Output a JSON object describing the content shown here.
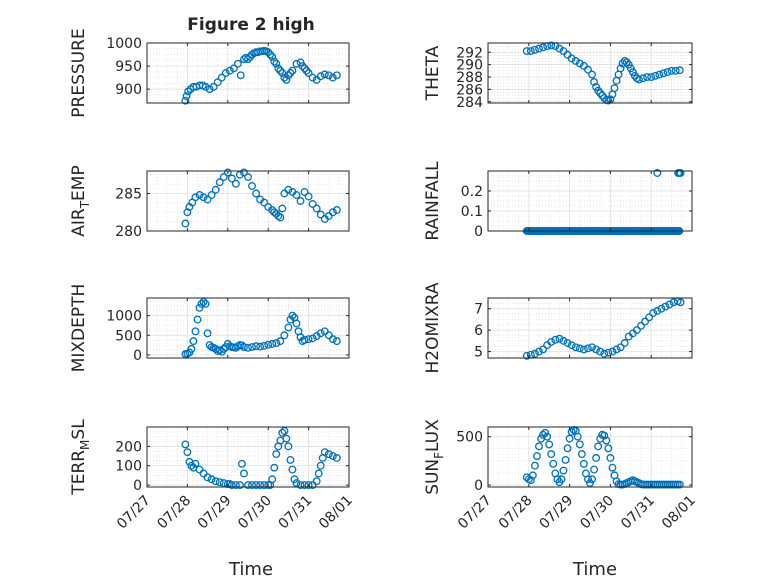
{
  "figure": {
    "title": "Figure 2 high",
    "marker_color": "#0072BD",
    "axis_color": "#262626",
    "grid_color": "#dcdcdc"
  },
  "x_axis": {
    "label": "Time",
    "tick_labels": [
      "07/27",
      "07/28",
      "07/29",
      "07/30",
      "07/31",
      "08/01"
    ],
    "tick_values": [
      0,
      1,
      2,
      3,
      4,
      5
    ],
    "range_days": [
      0,
      5
    ],
    "rotated_labels": true,
    "note_origin": "07/27"
  },
  "chart_data": [
    {
      "type": "scatter",
      "ylabel": "PRESSURE",
      "ylabel_sub": "",
      "ylabel_after": "",
      "ylim": [
        870,
        1000
      ],
      "yticks": [
        900,
        950,
        1000
      ],
      "grid": true,
      "show_xticks": false,
      "x": [
        0.95,
        0.98,
        1.02,
        1.08,
        1.15,
        1.22,
        1.3,
        1.38,
        1.45,
        1.55,
        1.65,
        1.75,
        1.85,
        1.95,
        2.05,
        2.15,
        2.25,
        2.32,
        2.4,
        2.45,
        2.5,
        2.55,
        2.6,
        2.65,
        2.7,
        2.75,
        2.8,
        2.85,
        2.9,
        2.95,
        3.0,
        3.05,
        3.1,
        3.15,
        3.2,
        3.25,
        3.3,
        3.35,
        3.4,
        3.45,
        3.5,
        3.55,
        3.6,
        3.7,
        3.8,
        3.85,
        3.9,
        3.95,
        4.0,
        4.1,
        4.2,
        4.3,
        4.4,
        4.5,
        4.6,
        4.7
      ],
      "y": [
        875,
        885,
        895,
        900,
        905,
        905,
        908,
        908,
        905,
        900,
        905,
        915,
        925,
        935,
        940,
        945,
        955,
        930,
        965,
        968,
        965,
        970,
        975,
        978,
        980,
        980,
        982,
        982,
        983,
        982,
        980,
        975,
        970,
        960,
        955,
        945,
        940,
        935,
        925,
        920,
        930,
        935,
        940,
        955,
        958,
        950,
        945,
        940,
        935,
        925,
        920,
        928,
        932,
        930,
        925,
        930
      ]
    },
    {
      "type": "scatter",
      "ylabel": "THETA",
      "ylabel_sub": "",
      "ylabel_after": "",
      "ylim": [
        283.8,
        293.5
      ],
      "yticks": [
        284,
        286,
        288,
        290,
        292
      ],
      "grid": true,
      "show_xticks": false,
      "x": [
        0.95,
        1.05,
        1.15,
        1.25,
        1.35,
        1.45,
        1.55,
        1.65,
        1.75,
        1.85,
        1.95,
        2.05,
        2.15,
        2.25,
        2.35,
        2.45,
        2.55,
        2.6,
        2.65,
        2.7,
        2.75,
        2.8,
        2.85,
        2.9,
        2.95,
        3.0,
        3.05,
        3.1,
        3.15,
        3.2,
        3.25,
        3.3,
        3.35,
        3.4,
        3.45,
        3.5,
        3.55,
        3.6,
        3.65,
        3.7,
        3.8,
        3.9,
        4.0,
        4.1,
        4.2,
        4.3,
        4.4,
        4.5,
        4.6,
        4.7
      ],
      "y": [
        292.2,
        292.2,
        292.4,
        292.6,
        292.8,
        293.0,
        293.1,
        293.0,
        292.6,
        292.2,
        291.6,
        291.0,
        290.6,
        290.2,
        289.8,
        289.2,
        288.4,
        287.2,
        286.4,
        285.8,
        285.4,
        285.0,
        284.6,
        284.3,
        284.2,
        284.4,
        285.2,
        286.2,
        287.4,
        288.4,
        289.4,
        290.2,
        290.6,
        290.4,
        290.0,
        289.4,
        288.8,
        288.2,
        287.8,
        287.6,
        287.8,
        288.0,
        288.0,
        288.2,
        288.4,
        288.6,
        288.8,
        289.0,
        289.0,
        289.1
      ]
    },
    {
      "type": "scatter",
      "ylabel": "AIR",
      "ylabel_sub": "T",
      "ylabel_after": "EMP",
      "ylim": [
        280,
        288
      ],
      "yticks": [
        280,
        285
      ],
      "grid": true,
      "show_xticks": false,
      "x": [
        0.95,
        1.0,
        1.05,
        1.12,
        1.2,
        1.3,
        1.4,
        1.5,
        1.6,
        1.7,
        1.8,
        1.9,
        2.0,
        2.1,
        2.2,
        2.3,
        2.4,
        2.5,
        2.6,
        2.7,
        2.8,
        2.9,
        3.0,
        3.1,
        3.15,
        3.2,
        3.25,
        3.3,
        3.35,
        3.4,
        3.5,
        3.6,
        3.7,
        3.8,
        3.9,
        4.0,
        4.1,
        4.2,
        4.3,
        4.4,
        4.5,
        4.6,
        4.7
      ],
      "y": [
        281.0,
        282.5,
        283.2,
        283.8,
        284.5,
        284.8,
        284.5,
        284.2,
        284.8,
        285.5,
        286.5,
        287.2,
        287.8,
        287.0,
        286.3,
        287.5,
        287.8,
        287.2,
        286.0,
        285.0,
        284.2,
        283.8,
        283.2,
        282.8,
        282.5,
        282.3,
        282.0,
        281.8,
        283.0,
        285.0,
        285.5,
        285.2,
        284.8,
        284.0,
        285.2,
        284.6,
        283.6,
        283.0,
        282.2,
        281.6,
        282.0,
        282.5,
        282.8
      ]
    },
    {
      "type": "scatter",
      "ylabel": "RAINFALL",
      "ylabel_sub": "",
      "ylabel_after": "",
      "ylim": [
        0,
        0.3
      ],
      "yticks": [
        0,
        0.1,
        0.2
      ],
      "grid": true,
      "show_xticks": false,
      "rain_zero_from": 0.95,
      "rain_zero_to": 4.7,
      "rain_zero_step": 0.02,
      "x": [
        4.15,
        4.66,
        4.69,
        4.72
      ],
      "y": [
        0.29,
        0.29,
        0.29,
        0.29
      ]
    },
    {
      "type": "scatter",
      "ylabel": "MIXDEPTH",
      "ylabel_sub": "",
      "ylabel_after": "",
      "ylim": [
        -80,
        1450
      ],
      "yticks": [
        0,
        500,
        1000
      ],
      "grid": true,
      "show_xticks": false,
      "x": [
        0.95,
        1.0,
        1.05,
        1.1,
        1.15,
        1.2,
        1.25,
        1.3,
        1.35,
        1.4,
        1.45,
        1.5,
        1.55,
        1.6,
        1.65,
        1.7,
        1.75,
        1.8,
        1.85,
        1.9,
        1.95,
        2.0,
        2.05,
        2.1,
        2.15,
        2.2,
        2.25,
        2.3,
        2.35,
        2.4,
        2.5,
        2.6,
        2.7,
        2.8,
        2.9,
        3.0,
        3.1,
        3.2,
        3.3,
        3.4,
        3.5,
        3.55,
        3.6,
        3.65,
        3.7,
        3.75,
        3.8,
        3.85,
        3.9,
        4.0,
        4.1,
        4.2,
        4.3,
        4.4,
        4.5,
        4.6,
        4.7
      ],
      "y": [
        20,
        30,
        60,
        150,
        350,
        600,
        900,
        1200,
        1300,
        1350,
        1300,
        550,
        250,
        200,
        180,
        150,
        100,
        120,
        80,
        150,
        200,
        280,
        220,
        200,
        190,
        180,
        220,
        250,
        240,
        200,
        180,
        200,
        220,
        210,
        230,
        260,
        280,
        300,
        350,
        500,
        700,
        900,
        1000,
        950,
        800,
        600,
        450,
        350,
        380,
        400,
        420,
        480,
        550,
        600,
        500,
        400,
        350
      ]
    },
    {
      "type": "scatter",
      "ylabel": "H2OMIXRA",
      "ylabel_sub": "",
      "ylabel_after": "",
      "ylim": [
        4.7,
        7.5
      ],
      "yticks": [
        5,
        6,
        7
      ],
      "grid": true,
      "show_xticks": false,
      "x": [
        0.95,
        1.05,
        1.15,
        1.25,
        1.35,
        1.45,
        1.55,
        1.65,
        1.75,
        1.85,
        1.95,
        2.05,
        2.15,
        2.25,
        2.35,
        2.45,
        2.55,
        2.65,
        2.75,
        2.85,
        2.95,
        3.05,
        3.15,
        3.25,
        3.35,
        3.45,
        3.55,
        3.65,
        3.75,
        3.85,
        3.95,
        4.05,
        4.15,
        4.25,
        4.35,
        4.45,
        4.55,
        4.65,
        4.72
      ],
      "y": [
        4.8,
        4.85,
        4.9,
        5.0,
        5.1,
        5.3,
        5.45,
        5.55,
        5.6,
        5.5,
        5.4,
        5.3,
        5.2,
        5.15,
        5.1,
        5.15,
        5.2,
        5.1,
        5.0,
        4.9,
        4.95,
        5.0,
        5.1,
        5.2,
        5.4,
        5.7,
        5.85,
        6.0,
        6.2,
        6.4,
        6.6,
        6.8,
        6.9,
        7.0,
        7.1,
        7.2,
        7.3,
        7.35,
        7.3
      ]
    },
    {
      "type": "scatter",
      "ylabel": "TERR",
      "ylabel_sub": "M",
      "ylabel_after": "SL",
      "ylim": [
        -10,
        300
      ],
      "yticks": [
        0,
        100,
        200
      ],
      "grid": true,
      "show_xticks": true,
      "x": [
        0.95,
        1.0,
        1.05,
        1.1,
        1.15,
        1.2,
        1.3,
        1.4,
        1.5,
        1.6,
        1.7,
        1.8,
        1.9,
        2.0,
        2.05,
        2.1,
        2.2,
        2.3,
        2.35,
        2.4,
        2.5,
        2.6,
        2.7,
        2.8,
        2.9,
        3.0,
        3.05,
        3.1,
        3.15,
        3.2,
        3.25,
        3.3,
        3.35,
        3.4,
        3.45,
        3.5,
        3.55,
        3.6,
        3.65,
        3.7,
        3.8,
        3.9,
        4.0,
        4.1,
        4.2,
        4.25,
        4.3,
        4.35,
        4.4,
        4.5,
        4.6,
        4.7
      ],
      "y": [
        210,
        170,
        120,
        100,
        90,
        110,
        80,
        60,
        40,
        30,
        20,
        15,
        10,
        5,
        5,
        0,
        0,
        0,
        110,
        60,
        0,
        0,
        0,
        0,
        0,
        0,
        0,
        30,
        90,
        160,
        200,
        230,
        270,
        280,
        240,
        200,
        130,
        80,
        30,
        10,
        0,
        0,
        0,
        0,
        20,
        60,
        100,
        140,
        170,
        160,
        150,
        140
      ]
    },
    {
      "type": "scatter",
      "ylabel": "SUN",
      "ylabel_sub": "F",
      "ylabel_after": "LUX",
      "ylim": [
        -20,
        600
      ],
      "yticks": [
        0,
        500
      ],
      "grid": true,
      "show_xticks": true,
      "x": [
        0.95,
        1.0,
        1.05,
        1.1,
        1.15,
        1.2,
        1.25,
        1.3,
        1.35,
        1.4,
        1.45,
        1.5,
        1.55,
        1.6,
        1.65,
        1.7,
        1.75,
        1.8,
        1.85,
        1.9,
        1.95,
        2.0,
        2.05,
        2.1,
        2.15,
        2.2,
        2.25,
        2.3,
        2.35,
        2.4,
        2.45,
        2.5,
        2.55,
        2.6,
        2.65,
        2.7,
        2.75,
        2.8,
        2.85,
        2.9,
        2.95,
        3.0,
        3.05,
        3.1,
        3.15,
        3.2,
        3.25,
        3.3,
        3.35,
        3.4,
        3.45,
        3.5,
        3.55,
        3.6,
        3.65,
        3.7,
        3.75,
        3.8,
        3.85,
        3.9,
        3.95,
        4.0,
        4.05,
        4.1,
        4.15,
        4.2,
        4.25,
        4.3,
        4.35,
        4.4,
        4.45,
        4.5,
        4.55,
        4.6,
        4.65,
        4.7
      ],
      "y": [
        80,
        60,
        50,
        100,
        200,
        300,
        400,
        480,
        520,
        540,
        500,
        420,
        320,
        220,
        120,
        60,
        30,
        60,
        150,
        260,
        380,
        480,
        550,
        570,
        560,
        500,
        420,
        320,
        220,
        120,
        60,
        20,
        60,
        160,
        280,
        400,
        480,
        520,
        510,
        460,
        380,
        280,
        180,
        100,
        40,
        10,
        5,
        5,
        10,
        20,
        30,
        40,
        50,
        40,
        30,
        20,
        10,
        5,
        5,
        5,
        5,
        5,
        5,
        5,
        5,
        5,
        5,
        5,
        5,
        5,
        5,
        5,
        5,
        5,
        5,
        5
      ]
    }
  ]
}
